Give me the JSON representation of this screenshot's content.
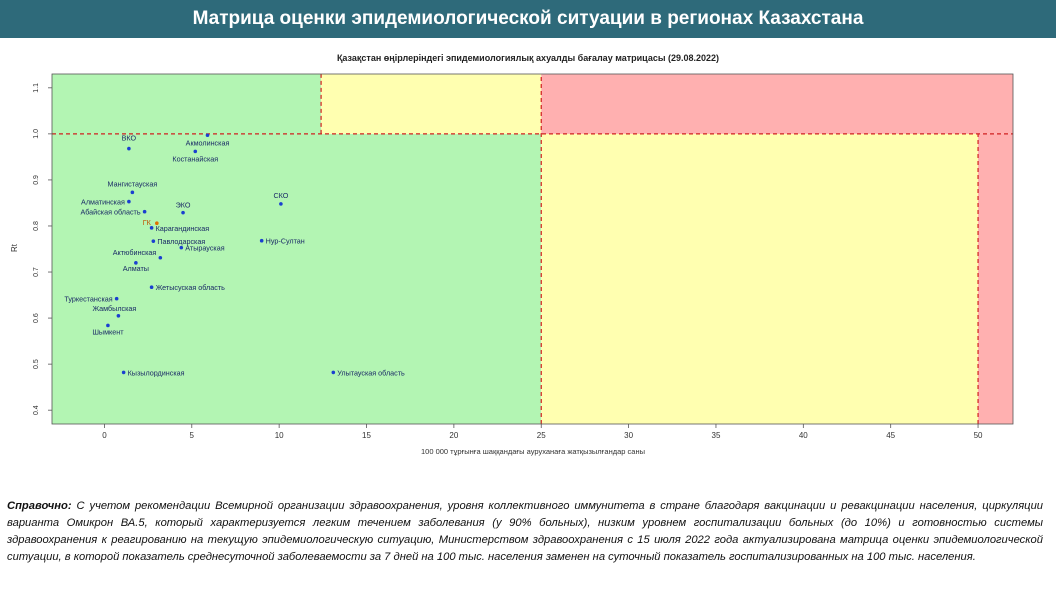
{
  "header": {
    "title": "Матрица оценки эпидемиологической ситуации в регионах Казахстана"
  },
  "chart_data": {
    "type": "scatter",
    "title": "Қазақстан өңірлеріндегі эпидемиологиялық ахуалды бағалау матрицасы  (29.08.2022)",
    "xlabel": "100 000 тұрғынға шаққандағы ауруханаға жатқызылғандар саны",
    "ylabel": "Rt",
    "xlim": [
      -3,
      52
    ],
    "ylim": [
      0.37,
      1.13
    ],
    "x_ticks": [
      0,
      5,
      10,
      15,
      20,
      25,
      30,
      35,
      40,
      45,
      50
    ],
    "x_tick_labels": [
      "0",
      "5",
      "10",
      "15",
      "20",
      "25",
      "30",
      "35",
      "40",
      "45",
      "50"
    ],
    "y_ticks": [
      0.4,
      0.5,
      0.6,
      0.7,
      0.8,
      0.9,
      1.0,
      1.1
    ],
    "y_tick_labels": [
      "0.4",
      "0.5",
      "0.6",
      "0.7",
      "0.8",
      "0.9",
      "1.0",
      "1.1"
    ],
    "grid": false,
    "zones": [
      {
        "xmin": -3,
        "xmax": 25,
        "ymin": 0.37,
        "ymax": 1.0,
        "color": "#b3f5b3"
      },
      {
        "xmin": -3,
        "xmax": 12.4,
        "ymin": 1.0,
        "ymax": 1.13,
        "color": "#b3f5b3"
      },
      {
        "xmin": 12.4,
        "xmax": 25,
        "ymin": 1.0,
        "ymax": 1.13,
        "color": "#ffffb0"
      },
      {
        "xmin": 25,
        "xmax": 50,
        "ymin": 0.37,
        "ymax": 1.0,
        "color": "#ffffb0"
      },
      {
        "xmin": 25,
        "xmax": 52,
        "ymin": 1.0,
        "ymax": 1.13,
        "color": "#ffb0b0"
      },
      {
        "xmin": 50,
        "xmax": 52,
        "ymin": 0.37,
        "ymax": 1.0,
        "color": "#ffb0b0"
      }
    ],
    "threshold_lines": [
      {
        "orientation": "h",
        "value": 1.0,
        "from": -3,
        "to": 52
      },
      {
        "orientation": "v",
        "value": 12.4,
        "from": 1.0,
        "to": 1.13
      },
      {
        "orientation": "v",
        "value": 25,
        "from": 0.37,
        "to": 1.13
      },
      {
        "orientation": "v",
        "value": 50,
        "from": 0.37,
        "to": 1.0
      }
    ],
    "points": [
      {
        "label": "ВКО",
        "x": 1.4,
        "y": 0.968
      },
      {
        "label": "Акмолинская",
        "x": 5.9,
        "y": 0.997
      },
      {
        "label": "Костанайская",
        "x": 5.2,
        "y": 0.962
      },
      {
        "label": "Мангистауская",
        "x": 1.6,
        "y": 0.873
      },
      {
        "label": "Алматинская",
        "x": 1.4,
        "y": 0.853
      },
      {
        "label": "Абайская область",
        "x": 2.3,
        "y": 0.831
      },
      {
        "label": "ЭКО",
        "x": 4.5,
        "y": 0.829
      },
      {
        "label": "СКО",
        "x": 10.1,
        "y": 0.848
      },
      {
        "label": "ГК",
        "x": 3.0,
        "y": 0.806
      },
      {
        "label": "Карагандинская",
        "x": 2.7,
        "y": 0.796
      },
      {
        "label": "Павлодарская",
        "x": 2.8,
        "y": 0.767
      },
      {
        "label": "Нур-Султан",
        "x": 9.0,
        "y": 0.768
      },
      {
        "label": "Атырауская",
        "x": 4.4,
        "y": 0.753
      },
      {
        "label": "Актюбинская",
        "x": 3.2,
        "y": 0.731
      },
      {
        "label": "Алматы",
        "x": 1.8,
        "y": 0.72
      },
      {
        "label": "Жетысуская область",
        "x": 2.7,
        "y": 0.667
      },
      {
        "label": "Туркестанская",
        "x": 0.7,
        "y": 0.642
      },
      {
        "label": "Жамбылская",
        "x": 0.8,
        "y": 0.605
      },
      {
        "label": "Шымкент",
        "x": 0.2,
        "y": 0.584
      },
      {
        "label": "Кызылординская",
        "x": 1.1,
        "y": 0.482
      },
      {
        "label": "Улытауская область",
        "x": 13.1,
        "y": 0.482
      }
    ]
  },
  "note": {
    "label": "Справочно:",
    "text": "С учетом рекомендации Всемирной организации здравоохранения, уровня коллективного иммунитета в стране благодаря вакцинации и ревакцинации населения, циркуляции варианта Омикрон ВА.5, который характеризуется легким течением заболевания (у 90% больных), низким уровнем госпитализации больных (до 10%) и готовностью системы здравоохранения к реагированию на текущую эпидемиологическую ситуацию, Министерством здравоохранения с 15 июля 2022 года актуализирована матрица оценки эпидемиологической ситуации, в которой показатель  среднесуточной заболеваемости за 7 дней на 100 тыс. населения заменен на  суточный показатель госпитализированных на 100 тыс. населения."
  }
}
